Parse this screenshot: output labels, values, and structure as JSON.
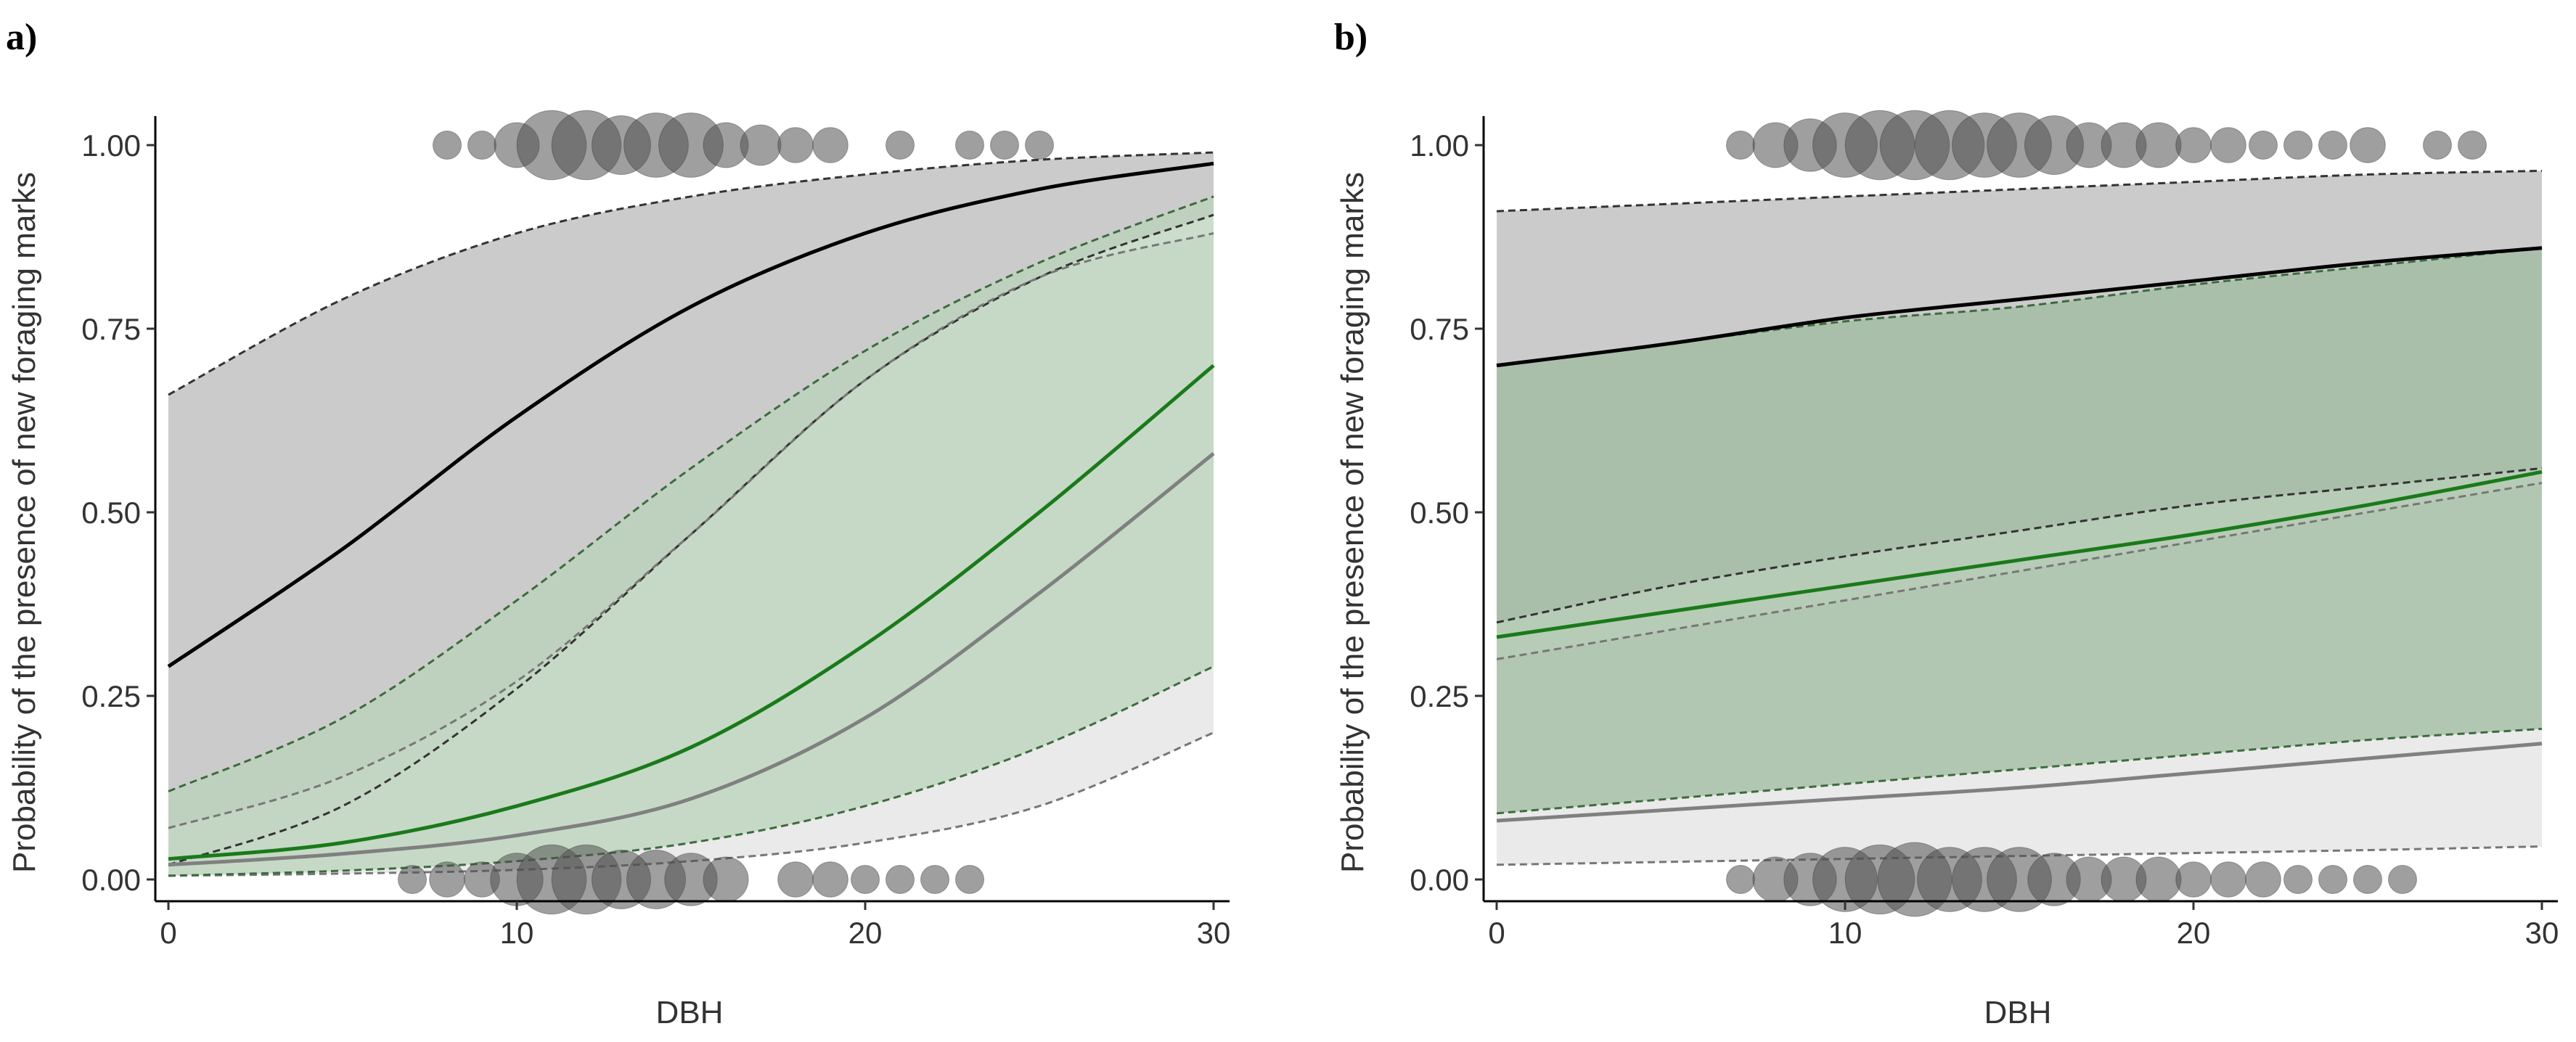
{
  "colors": {
    "band_grey_dark": "#c8c8c8",
    "band_grey_light": "#e3e3e3",
    "band_green_dark": "#9fbb9f",
    "band_green_mid": "#b9d3b9",
    "band_green_light": "#d2e8d2",
    "line_black": "#000000",
    "line_green": "#1a7a1a",
    "line_grey": "#808080",
    "bubble": "#505050"
  },
  "chart_data": [
    {
      "panel_label": "a)",
      "type": "line",
      "xlabel": "DBH",
      "ylabel": "Probability of the presence of new foraging marks",
      "xlim": [
        0,
        30
      ],
      "ylim": [
        0,
        1
      ],
      "x_ticks": [
        0,
        10,
        20,
        30
      ],
      "y_ticks": [
        0.0,
        0.25,
        0.5,
        0.75,
        1.0
      ],
      "x_tick_labels": [
        "0",
        "10",
        "20",
        "30"
      ],
      "y_tick_labels": [
        "0.00",
        "0.25",
        "0.50",
        "0.75",
        "1.00"
      ],
      "grid": false,
      "x": [
        0,
        5,
        10,
        15,
        20,
        25,
        30
      ],
      "series": [
        {
          "line": "black",
          "band_color": "grey_dark",
          "fit": [
            0.29,
            0.45,
            0.63,
            0.78,
            0.88,
            0.94,
            0.975
          ],
          "lower": [
            0.02,
            0.1,
            0.26,
            0.47,
            0.68,
            0.82,
            0.905
          ],
          "upper": [
            0.66,
            0.79,
            0.88,
            0.93,
            0.96,
            0.98,
            0.99
          ]
        },
        {
          "line": "grey",
          "band_color": "grey_light",
          "fit": [
            0.02,
            0.035,
            0.06,
            0.11,
            0.22,
            0.39,
            0.58
          ],
          "lower": [
            0.005,
            0.008,
            0.013,
            0.025,
            0.05,
            0.1,
            0.2
          ],
          "upper": [
            0.07,
            0.14,
            0.27,
            0.47,
            0.68,
            0.82,
            0.88
          ]
        },
        {
          "line": "green",
          "band_color": "green_mid",
          "fit": [
            0.028,
            0.05,
            0.1,
            0.18,
            0.32,
            0.5,
            0.7
          ],
          "lower": [
            0.005,
            0.012,
            0.025,
            0.05,
            0.1,
            0.18,
            0.29
          ],
          "upper": [
            0.12,
            0.22,
            0.38,
            0.56,
            0.72,
            0.84,
            0.93
          ]
        }
      ],
      "rug": {
        "top": [
          {
            "x": 8,
            "n": 1
          },
          {
            "x": 9,
            "n": 1
          },
          {
            "x": 10,
            "n": 4
          },
          {
            "x": 11,
            "n": 12
          },
          {
            "x": 12,
            "n": 12
          },
          {
            "x": 13,
            "n": 8
          },
          {
            "x": 14,
            "n": 10
          },
          {
            "x": 15,
            "n": 10
          },
          {
            "x": 16,
            "n": 4
          },
          {
            "x": 17,
            "n": 3
          },
          {
            "x": 18,
            "n": 2
          },
          {
            "x": 19,
            "n": 2
          },
          {
            "x": 21,
            "n": 1
          },
          {
            "x": 23,
            "n": 1
          },
          {
            "x": 24,
            "n": 1
          },
          {
            "x": 25,
            "n": 1
          }
        ],
        "bottom": [
          {
            "x": 7,
            "n": 1
          },
          {
            "x": 8,
            "n": 2
          },
          {
            "x": 9,
            "n": 2
          },
          {
            "x": 10,
            "n": 6
          },
          {
            "x": 11,
            "n": 12
          },
          {
            "x": 12,
            "n": 12
          },
          {
            "x": 13,
            "n": 8
          },
          {
            "x": 14,
            "n": 8
          },
          {
            "x": 15,
            "n": 6
          },
          {
            "x": 16,
            "n": 4
          },
          {
            "x": 18,
            "n": 2
          },
          {
            "x": 19,
            "n": 2
          },
          {
            "x": 20,
            "n": 1
          },
          {
            "x": 21,
            "n": 1
          },
          {
            "x": 22,
            "n": 1
          },
          {
            "x": 23,
            "n": 1
          }
        ]
      }
    },
    {
      "panel_label": "b)",
      "type": "line",
      "xlabel": "DBH",
      "ylabel": "Probability of the presence of new foraging marks",
      "xlim": [
        0,
        30
      ],
      "ylim": [
        0,
        1
      ],
      "x_ticks": [
        0,
        10,
        20,
        30
      ],
      "y_ticks": [
        0.0,
        0.25,
        0.5,
        0.75,
        1.0
      ],
      "x_tick_labels": [
        "0",
        "10",
        "20",
        "30"
      ],
      "y_tick_labels": [
        "0.00",
        "0.25",
        "0.50",
        "0.75",
        "1.00"
      ],
      "grid": false,
      "x": [
        0,
        5,
        10,
        15,
        20,
        25,
        30
      ],
      "series": [
        {
          "line": "black",
          "band_color": "grey_dark",
          "fit": [
            0.7,
            0.73,
            0.765,
            0.79,
            0.815,
            0.84,
            0.86
          ],
          "lower": [
            0.35,
            0.4,
            0.44,
            0.475,
            0.51,
            0.535,
            0.56
          ],
          "upper": [
            0.91,
            0.92,
            0.93,
            0.94,
            0.95,
            0.96,
            0.965
          ]
        },
        {
          "line": "grey",
          "band_color": "grey_light",
          "fit": [
            0.08,
            0.095,
            0.11,
            0.125,
            0.145,
            0.165,
            0.185
          ],
          "lower": [
            0.02,
            0.024,
            0.028,
            0.032,
            0.036,
            0.04,
            0.045
          ],
          "upper": [
            0.3,
            0.34,
            0.38,
            0.42,
            0.46,
            0.5,
            0.54
          ]
        },
        {
          "line": "green",
          "band_color": "green_dark",
          "fit": [
            0.33,
            0.365,
            0.4,
            0.435,
            0.47,
            0.51,
            0.555
          ],
          "lower": [
            0.09,
            0.11,
            0.13,
            0.15,
            0.17,
            0.19,
            0.205
          ],
          "upper": [
            0.7,
            0.73,
            0.76,
            0.78,
            0.81,
            0.835,
            0.86
          ]
        }
      ],
      "rug": {
        "top": [
          {
            "x": 7,
            "n": 1
          },
          {
            "x": 8,
            "n": 4
          },
          {
            "x": 9,
            "n": 6
          },
          {
            "x": 10,
            "n": 10
          },
          {
            "x": 11,
            "n": 12
          },
          {
            "x": 12,
            "n": 12
          },
          {
            "x": 13,
            "n": 12
          },
          {
            "x": 14,
            "n": 10
          },
          {
            "x": 15,
            "n": 10
          },
          {
            "x": 16,
            "n": 8
          },
          {
            "x": 17,
            "n": 4
          },
          {
            "x": 18,
            "n": 4
          },
          {
            "x": 19,
            "n": 4
          },
          {
            "x": 20,
            "n": 2
          },
          {
            "x": 21,
            "n": 2
          },
          {
            "x": 22,
            "n": 1
          },
          {
            "x": 23,
            "n": 1
          },
          {
            "x": 24,
            "n": 1
          },
          {
            "x": 25,
            "n": 2
          },
          {
            "x": 27,
            "n": 1
          },
          {
            "x": 28,
            "n": 1
          }
        ],
        "bottom": [
          {
            "x": 7,
            "n": 1
          },
          {
            "x": 8,
            "n": 4
          },
          {
            "x": 9,
            "n": 6
          },
          {
            "x": 10,
            "n": 10
          },
          {
            "x": 11,
            "n": 12
          },
          {
            "x": 12,
            "n": 14
          },
          {
            "x": 13,
            "n": 10
          },
          {
            "x": 14,
            "n": 10
          },
          {
            "x": 15,
            "n": 10
          },
          {
            "x": 16,
            "n": 6
          },
          {
            "x": 17,
            "n": 4
          },
          {
            "x": 18,
            "n": 4
          },
          {
            "x": 19,
            "n": 4
          },
          {
            "x": 20,
            "n": 2
          },
          {
            "x": 21,
            "n": 2
          },
          {
            "x": 22,
            "n": 2
          },
          {
            "x": 23,
            "n": 1
          },
          {
            "x": 24,
            "n": 1
          },
          {
            "x": 25,
            "n": 1
          },
          {
            "x": 26,
            "n": 1
          }
        ]
      }
    }
  ]
}
